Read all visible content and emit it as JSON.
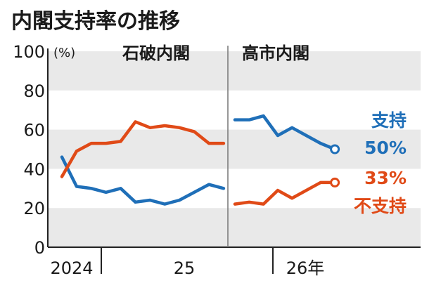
{
  "chart_data": {
    "type": "line",
    "title": "内閣支持率の推移",
    "y_unit": "(%)",
    "ylim": [
      0,
      100
    ],
    "yticks": [
      0,
      20,
      40,
      60,
      80,
      100
    ],
    "grid": true,
    "x_labels": [
      "2024",
      "25",
      "26年"
    ],
    "eras": [
      {
        "name": "石破内閣",
        "start": 0,
        "end": 15
      },
      {
        "name": "高市内閣",
        "start": 16,
        "end": 22
      }
    ],
    "series": [
      {
        "key": "support",
        "color": "#1f6fb8",
        "period1": [
          46,
          31,
          30,
          28,
          30,
          23,
          24,
          22,
          24,
          28,
          32,
          30
        ],
        "period2": [
          65,
          65,
          67,
          57,
          61,
          57,
          53,
          50
        ],
        "end_label": "支持",
        "end_value": "50%"
      },
      {
        "key": "nonsupport",
        "color": "#e04a17",
        "period1": [
          36,
          49,
          53,
          53,
          54,
          64,
          61,
          62,
          61,
          59,
          53,
          53
        ],
        "period2": [
          22,
          23,
          22,
          29,
          25,
          29,
          33,
          33
        ],
        "end_label": "不支持",
        "end_value": "33%"
      }
    ]
  },
  "colors": {
    "band": "#e9e9e9",
    "axis": "#222222",
    "divider": "#777777"
  }
}
